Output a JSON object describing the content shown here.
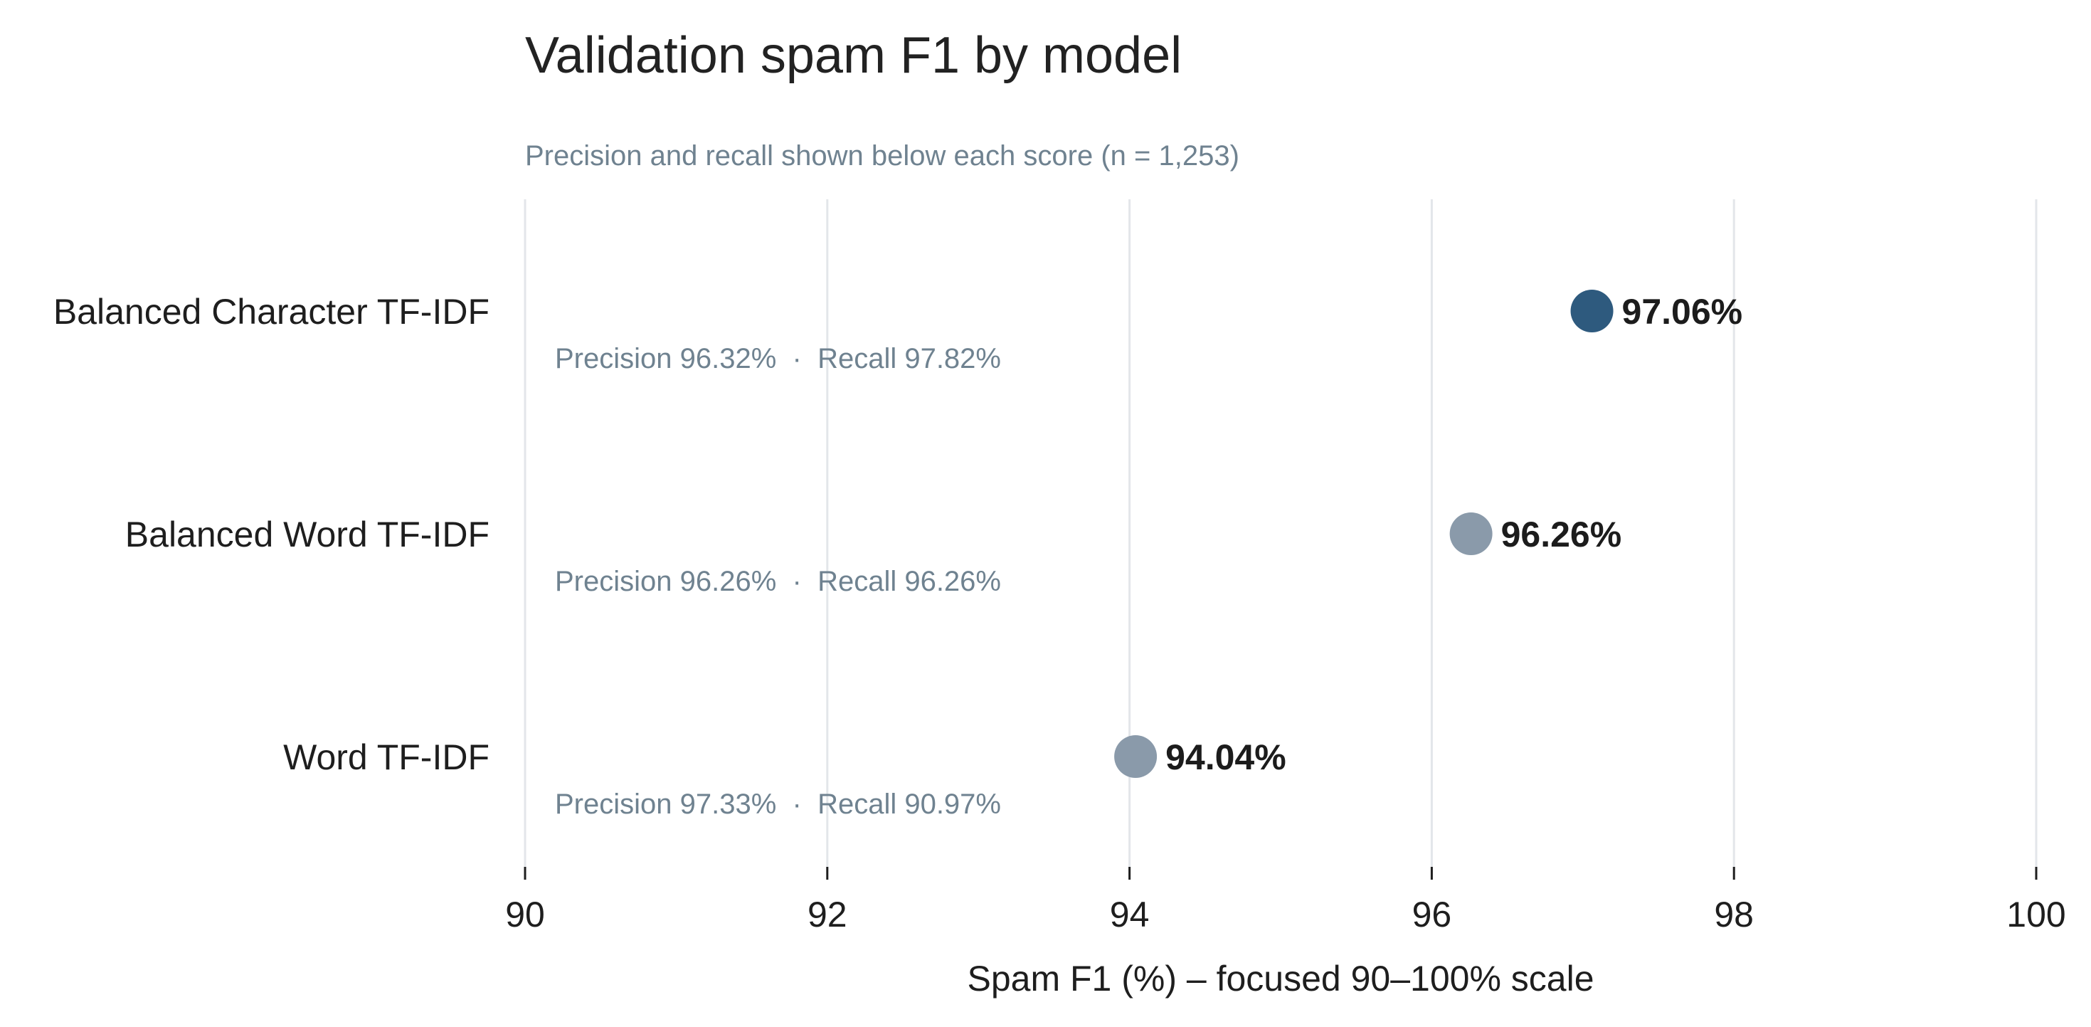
{
  "chart_data": {
    "type": "scatter",
    "title": "Validation spam F1 by model",
    "subtitle": "Precision and recall shown below each score (n = 1,253)",
    "xlabel": "Spam F1 (%) – focused 90–100% scale",
    "ylabel": "",
    "xlim": [
      90,
      100
    ],
    "xticks": [
      "90",
      "92",
      "94",
      "96",
      "98",
      "100"
    ],
    "grid": true,
    "categories": [
      "Balanced Character TF-IDF",
      "Balanced Word TF-IDF",
      "Word TF-IDF"
    ],
    "points": [
      {
        "category": "Balanced Character TF-IDF",
        "value": 97.06,
        "label": "97.06%",
        "detail": "Precision 96.32%  ·  Recall 97.82%",
        "color": "#2e5a7e"
      },
      {
        "category": "Balanced Word TF-IDF",
        "value": 96.26,
        "label": "96.26%",
        "detail": "Precision 96.26%  ·  Recall 96.26%",
        "color": "#8a9aaa"
      },
      {
        "category": "Word TF-IDF",
        "value": 94.04,
        "label": "94.04%",
        "detail": "Precision 97.33%  ·  Recall 90.97%",
        "color": "#8a9aaa"
      }
    ]
  }
}
